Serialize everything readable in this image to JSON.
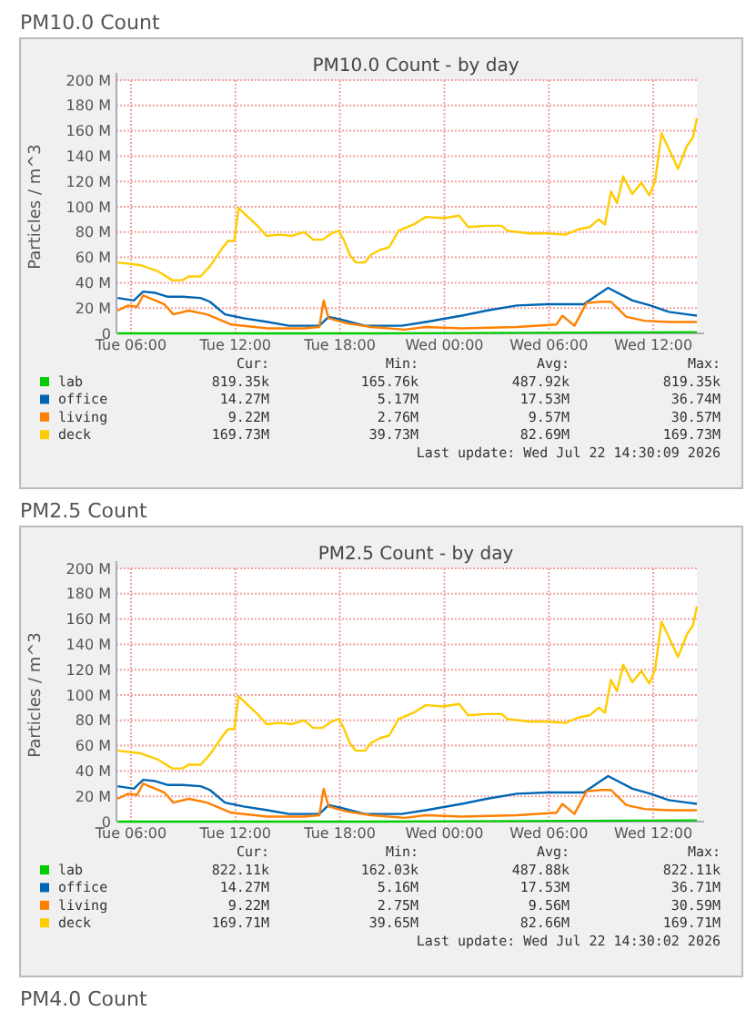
{
  "chart_data": [
    {
      "type": "line",
      "subtitle": "PM10.0 Count",
      "title": "PM10.0 Count - by day",
      "ylabel": "Particles / m^3",
      "xlim": [
        "2026-07-21T05:10",
        "2026-07-22T14:30"
      ],
      "xticks": [
        {
          "value": "2026-07-21T06:00",
          "label": "Tue 06:00"
        },
        {
          "value": "2026-07-21T12:00",
          "label": "Tue 12:00"
        },
        {
          "value": "2026-07-21T18:00",
          "label": "Tue 18:00"
        },
        {
          "value": "2026-07-22T00:00",
          "label": "Wed 00:00"
        },
        {
          "value": "2026-07-22T06:00",
          "label": "Wed 06:00"
        },
        {
          "value": "2026-07-22T12:00",
          "label": "Wed 12:00"
        }
      ],
      "ylim": [
        0,
        200
      ],
      "yticks": [
        {
          "value": 0,
          "label": "0"
        },
        {
          "value": 20,
          "label": "20 M"
        },
        {
          "value": 40,
          "label": "40 M"
        },
        {
          "value": 60,
          "label": "60 M"
        },
        {
          "value": 80,
          "label": "80 M"
        },
        {
          "value": 100,
          "label": "100 M"
        },
        {
          "value": 120,
          "label": "120 M"
        },
        {
          "value": 140,
          "label": "140 M"
        },
        {
          "value": 160,
          "label": "160 M"
        },
        {
          "value": 180,
          "label": "180 M"
        },
        {
          "value": 200,
          "label": "200 M"
        }
      ],
      "grid": true,
      "legend": "bottom",
      "series": [
        {
          "name": "lab",
          "color": "#00cc00",
          "x": [
            "2026-07-21T05:14",
            "2026-07-21T20:00",
            "2026-07-22T14:30"
          ],
          "values": [
            0,
            0,
            1
          ]
        },
        {
          "name": "office",
          "color": "#0066b3",
          "x": [
            "2026-07-21T05:14",
            "2026-07-21T06:10",
            "2026-07-21T06:42",
            "2026-07-21T07:24",
            "2026-07-21T08:05",
            "2026-07-21T08:58",
            "2026-07-21T10:00",
            "2026-07-21T10:32",
            "2026-07-21T11:24",
            "2026-07-21T12:28",
            "2026-07-21T13:51",
            "2026-07-21T15:05",
            "2026-07-21T16:49",
            "2026-07-21T17:21",
            "2026-07-21T18:02",
            "2026-07-21T19:26",
            "2026-07-21T21:32",
            "2026-07-21T22:56",
            "2026-07-22T01:00",
            "2026-07-22T02:25",
            "2026-07-22T04:10",
            "2026-07-22T05:55",
            "2026-07-22T08:00",
            "2026-07-22T09:24",
            "2026-07-22T10:48",
            "2026-07-22T11:50",
            "2026-07-22T12:53",
            "2026-07-22T13:56",
            "2026-07-22T14:30"
          ],
          "values": [
            28,
            26,
            33,
            32,
            29,
            29,
            28,
            25,
            15,
            12,
            9,
            6,
            6,
            13,
            11,
            6,
            6,
            9,
            14,
            18,
            22,
            23,
            23,
            36,
            26,
            22,
            17,
            15,
            14
          ]
        },
        {
          "name": "living",
          "color": "#ff8000",
          "x": [
            "2026-07-21T05:14",
            "2026-07-21T05:50",
            "2026-07-21T06:21",
            "2026-07-21T06:42",
            "2026-07-21T07:24",
            "2026-07-21T07:55",
            "2026-07-21T08:26",
            "2026-07-21T09:19",
            "2026-07-21T10:22",
            "2026-07-21T11:46",
            "2026-07-21T13:51",
            "2026-07-21T15:57",
            "2026-07-21T16:49",
            "2026-07-21T17:04",
            "2026-07-21T17:21",
            "2026-07-21T18:23",
            "2026-07-21T19:47",
            "2026-07-21T21:43",
            "2026-07-21T22:56",
            "2026-07-22T01:00",
            "2026-07-22T04:10",
            "2026-07-22T06:26",
            "2026-07-22T06:47",
            "2026-07-22T07:28",
            "2026-07-22T08:10",
            "2026-07-22T09:03",
            "2026-07-22T09:34",
            "2026-07-22T10:27",
            "2026-07-22T11:29",
            "2026-07-22T12:53",
            "2026-07-22T14:30"
          ],
          "values": [
            18,
            22,
            21,
            30,
            26,
            23,
            15,
            18,
            15,
            7,
            4,
            4,
            5,
            26,
            12,
            8,
            5,
            3,
            5,
            4,
            5,
            7,
            14,
            6,
            24,
            25,
            25,
            13,
            10,
            9,
            9
          ]
        },
        {
          "name": "deck",
          "color": "#ffcc00",
          "x": [
            "2026-07-21T05:14",
            "2026-07-21T06:31",
            "2026-07-21T07:34",
            "2026-07-21T08:22",
            "2026-07-21T08:58",
            "2026-07-21T09:19",
            "2026-07-21T10:00",
            "2026-07-21T10:32",
            "2026-07-21T11:14",
            "2026-07-21T11:35",
            "2026-07-21T11:56",
            "2026-07-21T12:11",
            "2026-07-21T12:38",
            "2026-07-21T13:20",
            "2026-07-21T13:47",
            "2026-07-21T14:33",
            "2026-07-21T15:15",
            "2026-07-21T15:57",
            "2026-07-21T16:28",
            "2026-07-21T17:00",
            "2026-07-21T17:31",
            "2026-07-21T17:56",
            "2026-07-21T18:13",
            "2026-07-21T18:34",
            "2026-07-21T18:55",
            "2026-07-21T19:26",
            "2026-07-21T19:47",
            "2026-07-21T20:19",
            "2026-07-21T20:50",
            "2026-07-21T21:22",
            "2026-07-21T22:14",
            "2026-07-21T22:56",
            "2026-07-21T23:58",
            "2026-07-22T00:51",
            "2026-07-22T01:22",
            "2026-07-22T02:25",
            "2026-07-22T03:17",
            "2026-07-22T03:38",
            "2026-07-22T04:52",
            "2026-07-22T05:55",
            "2026-07-22T06:58",
            "2026-07-22T07:39",
            "2026-07-22T08:21",
            "2026-07-22T08:52",
            "2026-07-22T09:13",
            "2026-07-22T09:34",
            "2026-07-22T09:55",
            "2026-07-22T10:16",
            "2026-07-22T10:48",
            "2026-07-22T11:19",
            "2026-07-22T11:46",
            "2026-07-22T12:06",
            "2026-07-22T12:28",
            "2026-07-22T12:53",
            "2026-07-22T13:25",
            "2026-07-22T13:56",
            "2026-07-22T14:17",
            "2026-07-22T14:30"
          ],
          "values": [
            56,
            54,
            49,
            42,
            42,
            45,
            45,
            53,
            67,
            73,
            73,
            99,
            93,
            84,
            77,
            78,
            77,
            80,
            74,
            74,
            79,
            81,
            74,
            62,
            56,
            56,
            62,
            66,
            68,
            81,
            86,
            92,
            91,
            93,
            84,
            85,
            85,
            81,
            79,
            79,
            78,
            82,
            84,
            90,
            86,
            112,
            103,
            124,
            110,
            119,
            109,
            120,
            158,
            146,
            130,
            148,
            155,
            170
          ]
        }
      ],
      "annotations": [
        "Cur:",
        "Min:",
        "Avg:",
        "Max:",
        "819.35k",
        "165.76k",
        "487.92k",
        "819.35k",
        "14.27M",
        "5.17M",
        "17.53M",
        "36.74M",
        "9.22M",
        "2.76M",
        "9.57M",
        "30.57M",
        "169.73M",
        "39.73M",
        "82.69M",
        "169.73M",
        "Last update: Wed Jul 22 14:30:09 2026"
      ]
    },
    {
      "type": "line",
      "subtitle": "PM2.5 Count",
      "title": "PM2.5 Count - by day",
      "ylabel": "Particles / m^3",
      "xlim": [
        "2026-07-21T05:10",
        "2026-07-22T14:30"
      ],
      "xticks": [
        {
          "value": "2026-07-21T06:00",
          "label": "Tue 06:00"
        },
        {
          "value": "2026-07-21T12:00",
          "label": "Tue 12:00"
        },
        {
          "value": "2026-07-21T18:00",
          "label": "Tue 18:00"
        },
        {
          "value": "2026-07-22T00:00",
          "label": "Wed 00:00"
        },
        {
          "value": "2026-07-22T06:00",
          "label": "Wed 06:00"
        },
        {
          "value": "2026-07-22T12:00",
          "label": "Wed 12:00"
        }
      ],
      "ylim": [
        0,
        200
      ],
      "yticks": [
        {
          "value": 0,
          "label": "0"
        },
        {
          "value": 20,
          "label": "20 M"
        },
        {
          "value": 40,
          "label": "40 M"
        },
        {
          "value": 60,
          "label": "60 M"
        },
        {
          "value": 80,
          "label": "80 M"
        },
        {
          "value": 100,
          "label": "100 M"
        },
        {
          "value": 120,
          "label": "120 M"
        },
        {
          "value": 140,
          "label": "140 M"
        },
        {
          "value": 160,
          "label": "160 M"
        },
        {
          "value": 180,
          "label": "180 M"
        },
        {
          "value": 200,
          "label": "200 M"
        }
      ],
      "grid": true,
      "legend": "bottom",
      "series": [
        {
          "name": "lab",
          "color": "#00cc00",
          "x": [
            "2026-07-21T05:14",
            "2026-07-21T20:00",
            "2026-07-22T14:30"
          ],
          "values": [
            0,
            0,
            1
          ]
        },
        {
          "name": "office",
          "color": "#0066b3",
          "x": [
            "2026-07-21T05:14",
            "2026-07-21T06:10",
            "2026-07-21T06:42",
            "2026-07-21T07:24",
            "2026-07-21T08:05",
            "2026-07-21T08:58",
            "2026-07-21T10:00",
            "2026-07-21T10:32",
            "2026-07-21T11:24",
            "2026-07-21T12:28",
            "2026-07-21T13:51",
            "2026-07-21T15:05",
            "2026-07-21T16:49",
            "2026-07-21T17:21",
            "2026-07-21T18:02",
            "2026-07-21T19:26",
            "2026-07-21T21:32",
            "2026-07-21T22:56",
            "2026-07-22T01:00",
            "2026-07-22T02:25",
            "2026-07-22T04:10",
            "2026-07-22T05:55",
            "2026-07-22T08:00",
            "2026-07-22T09:24",
            "2026-07-22T10:48",
            "2026-07-22T11:50",
            "2026-07-22T12:53",
            "2026-07-22T13:56",
            "2026-07-22T14:30"
          ],
          "values": [
            28,
            26,
            33,
            32,
            29,
            29,
            28,
            25,
            15,
            12,
            9,
            6,
            6,
            13,
            11,
            6,
            6,
            9,
            14,
            18,
            22,
            23,
            23,
            36,
            26,
            22,
            17,
            15,
            14
          ]
        },
        {
          "name": "living",
          "color": "#ff8000",
          "x": [
            "2026-07-21T05:14",
            "2026-07-21T05:50",
            "2026-07-21T06:21",
            "2026-07-21T06:42",
            "2026-07-21T07:24",
            "2026-07-21T07:55",
            "2026-07-21T08:26",
            "2026-07-21T09:19",
            "2026-07-21T10:22",
            "2026-07-21T11:46",
            "2026-07-21T13:51",
            "2026-07-21T15:57",
            "2026-07-21T16:49",
            "2026-07-21T17:04",
            "2026-07-21T17:21",
            "2026-07-21T18:23",
            "2026-07-21T19:47",
            "2026-07-21T21:43",
            "2026-07-21T22:56",
            "2026-07-22T01:00",
            "2026-07-22T04:10",
            "2026-07-22T06:26",
            "2026-07-22T06:47",
            "2026-07-22T07:28",
            "2026-07-22T08:10",
            "2026-07-22T09:03",
            "2026-07-22T09:34",
            "2026-07-22T10:27",
            "2026-07-22T11:29",
            "2026-07-22T12:53",
            "2026-07-22T14:30"
          ],
          "values": [
            18,
            22,
            21,
            30,
            26,
            23,
            15,
            18,
            15,
            7,
            4,
            4,
            5,
            26,
            12,
            8,
            5,
            3,
            5,
            4,
            5,
            7,
            14,
            6,
            24,
            25,
            25,
            13,
            10,
            9,
            9
          ]
        },
        {
          "name": "deck",
          "color": "#ffcc00",
          "x": [
            "2026-07-21T05:14",
            "2026-07-21T06:31",
            "2026-07-21T07:34",
            "2026-07-21T08:22",
            "2026-07-21T08:58",
            "2026-07-21T09:19",
            "2026-07-21T10:00",
            "2026-07-21T10:32",
            "2026-07-21T11:14",
            "2026-07-21T11:35",
            "2026-07-21T11:56",
            "2026-07-21T12:11",
            "2026-07-21T12:38",
            "2026-07-21T13:20",
            "2026-07-21T13:47",
            "2026-07-21T14:33",
            "2026-07-21T15:15",
            "2026-07-21T15:57",
            "2026-07-21T16:28",
            "2026-07-21T17:00",
            "2026-07-21T17:31",
            "2026-07-21T17:56",
            "2026-07-21T18:13",
            "2026-07-21T18:34",
            "2026-07-21T18:55",
            "2026-07-21T19:26",
            "2026-07-21T19:47",
            "2026-07-21T20:19",
            "2026-07-21T20:50",
            "2026-07-21T21:22",
            "2026-07-21T22:14",
            "2026-07-21T22:56",
            "2026-07-21T23:58",
            "2026-07-22T00:51",
            "2026-07-22T01:22",
            "2026-07-22T02:25",
            "2026-07-22T03:17",
            "2026-07-22T03:38",
            "2026-07-22T04:52",
            "2026-07-22T05:55",
            "2026-07-22T06:58",
            "2026-07-22T07:39",
            "2026-07-22T08:21",
            "2026-07-22T08:52",
            "2026-07-22T09:13",
            "2026-07-22T09:34",
            "2026-07-22T09:55",
            "2026-07-22T10:16",
            "2026-07-22T10:48",
            "2026-07-22T11:19",
            "2026-07-22T11:46",
            "2026-07-22T12:06",
            "2026-07-22T12:28",
            "2026-07-22T12:53",
            "2026-07-22T13:25",
            "2026-07-22T13:56",
            "2026-07-22T14:17",
            "2026-07-22T14:30"
          ],
          "values": [
            56,
            54,
            49,
            42,
            42,
            45,
            45,
            53,
            67,
            73,
            73,
            99,
            93,
            84,
            77,
            78,
            77,
            80,
            74,
            74,
            79,
            81,
            74,
            62,
            56,
            56,
            62,
            66,
            68,
            81,
            86,
            92,
            91,
            93,
            84,
            85,
            85,
            81,
            79,
            79,
            78,
            82,
            84,
            90,
            86,
            112,
            103,
            124,
            110,
            119,
            109,
            120,
            158,
            146,
            130,
            148,
            155,
            170
          ]
        }
      ],
      "annotations": [
        "Cur:",
        "Min:",
        "Avg:",
        "Max:",
        "822.11k",
        "162.03k",
        "487.88k",
        "822.11k",
        "14.27M",
        "5.16M",
        "17.53M",
        "36.71M",
        "9.22M",
        "2.75M",
        "9.56M",
        "30.59M",
        "169.71M",
        "39.65M",
        "82.66M",
        "169.71M",
        "Last update: Wed Jul 22 14:30:02 2026",
        "PM4.0 Count"
      ]
    }
  ]
}
